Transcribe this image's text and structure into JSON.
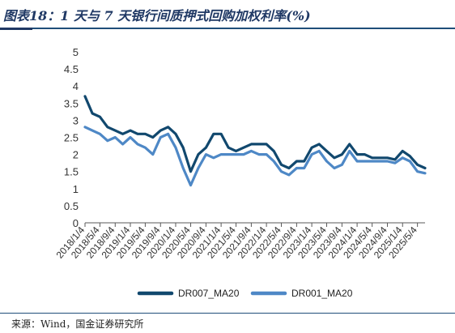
{
  "title": "图表18：1 天与 7 天银行间质押式回购加权利率(%)",
  "source": "来源：Wind，国金证券研究所",
  "colors": {
    "DR007_MA20": "#11486e",
    "DR001_MA20": "#4e88c6",
    "axis": "#595959",
    "title": "#1f3864"
  },
  "chart_data": {
    "type": "line",
    "title": "",
    "xlabel": "",
    "ylabel": "",
    "ylim": [
      0,
      5
    ],
    "yticks": [
      "0",
      "0.5",
      "1",
      "1.5",
      "2",
      "2.5",
      "3",
      "3.5",
      "4",
      "4.5",
      "5"
    ],
    "xticks": [
      "2018/1/4",
      "2018/5/4",
      "2018/9/4",
      "2019/1/4",
      "2019/5/4",
      "2019/9/4",
      "2020/1/4",
      "2020/5/4",
      "2020/9/4",
      "2021/1/4",
      "2021/5/4",
      "2021/9/4",
      "2022/1/4",
      "2022/5/4",
      "2022/9/4",
      "2023/1/4",
      "2023/5/4",
      "2023/9/4",
      "2024/1/4",
      "2024/5/4",
      "2024/9/4",
      "2025/1/4",
      "2025/5/4"
    ],
    "x": [
      "2018/1/4",
      "2018/3/4",
      "2018/5/4",
      "2018/7/4",
      "2018/9/4",
      "2018/11/4",
      "2019/1/4",
      "2019/3/4",
      "2019/5/4",
      "2019/7/4",
      "2019/9/4",
      "2019/11/4",
      "2020/1/4",
      "2020/3/4",
      "2020/5/4",
      "2020/7/4",
      "2020/9/4",
      "2020/11/4",
      "2021/1/4",
      "2021/3/4",
      "2021/5/4",
      "2021/7/4",
      "2021/9/4",
      "2021/11/4",
      "2022/1/4",
      "2022/3/4",
      "2022/5/4",
      "2022/7/4",
      "2022/9/4",
      "2022/11/4",
      "2023/1/4",
      "2023/3/4",
      "2023/5/4",
      "2023/7/4",
      "2023/9/4",
      "2023/11/4",
      "2024/1/4",
      "2024/3/4",
      "2024/5/4",
      "2024/7/4",
      "2024/9/4",
      "2024/11/4",
      "2025/1/4",
      "2025/3/4",
      "2025/5/4",
      "2025/7/4"
    ],
    "legend_position": "bottom",
    "grid": false,
    "series": [
      {
        "name": "DR007_MA20",
        "values": [
          3.7,
          3.2,
          3.1,
          2.8,
          2.7,
          2.6,
          2.7,
          2.6,
          2.6,
          2.5,
          2.7,
          2.8,
          2.6,
          2.2,
          1.5,
          2.0,
          2.2,
          2.6,
          2.6,
          2.2,
          2.1,
          2.2,
          2.3,
          2.3,
          2.3,
          2.1,
          1.7,
          1.6,
          1.8,
          1.8,
          2.2,
          2.3,
          2.1,
          1.9,
          2.0,
          2.3,
          2.0,
          2.0,
          1.9,
          1.9,
          1.9,
          1.85,
          2.1,
          1.95,
          1.7,
          1.6
        ]
      },
      {
        "name": "DR001_MA20",
        "values": [
          2.8,
          2.7,
          2.6,
          2.4,
          2.5,
          2.3,
          2.5,
          2.3,
          2.2,
          2.0,
          2.5,
          2.6,
          2.2,
          1.6,
          1.1,
          1.6,
          2.0,
          1.9,
          2.0,
          2.0,
          2.0,
          2.0,
          2.1,
          2.0,
          2.0,
          1.8,
          1.5,
          1.4,
          1.6,
          1.6,
          2.0,
          2.1,
          1.8,
          1.6,
          1.7,
          2.1,
          1.8,
          1.8,
          1.8,
          1.8,
          1.8,
          1.75,
          1.9,
          1.8,
          1.5,
          1.45
        ]
      }
    ]
  }
}
